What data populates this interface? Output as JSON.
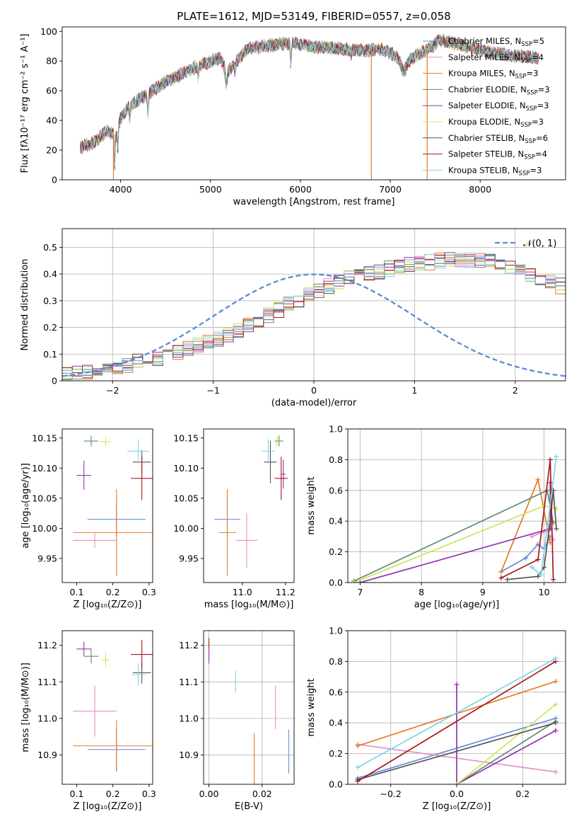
{
  "title": "PLATE=1612, MJD=53149, FIBERID=0557, z=0.058",
  "colors": {
    "c1": "#6a8fdc",
    "c2": "#e88fc4",
    "c3": "#e67a22",
    "c4": "#5e8f6a",
    "c5": "#9333b0",
    "c6": "#cde65a",
    "c7": "#555555",
    "c8": "#a61a1a",
    "c9": "#7fd6e6"
  },
  "legend_spectrum": [
    {
      "label": "Chabrier MILES, N",
      "sub": "SSP",
      "tail": "=5",
      "color": "c1"
    },
    {
      "label": "Salpeter MILES, N",
      "sub": "SSP",
      "tail": "=4",
      "color": "c2"
    },
    {
      "label": "Kroupa MILES, N",
      "sub": "SSP",
      "tail": "=3",
      "color": "c3"
    },
    {
      "label": "Chabrier ELODIE, N",
      "sub": "SSP",
      "tail": "=3",
      "color": "c4"
    },
    {
      "label": "Salpeter ELODIE, N",
      "sub": "SSP",
      "tail": "=3",
      "color": "c5"
    },
    {
      "label": "Kroupa ELODIE, N",
      "sub": "SSP",
      "tail": "=3",
      "color": "c6"
    },
    {
      "label": "Chabrier STELIB, N",
      "sub": "SSP",
      "tail": "=6",
      "color": "c7"
    },
    {
      "label": "Salpeter STELIB, N",
      "sub": "SSP",
      "tail": "=4",
      "color": "c8"
    },
    {
      "label": "Kroupa STELIB, N",
      "sub": "SSP",
      "tail": "=3",
      "color": "c9"
    }
  ],
  "legend_hist": "𝒩(0, 1)",
  "chart_data": [
    {
      "id": "spectrum",
      "type": "line",
      "xlabel": "wavelength [Angstrom, rest frame]",
      "ylabel": "Flux [fλ10⁻¹⁷ erg cm⁻² s⁻¹ A⁻¹]",
      "xlim": [
        3350,
        8950
      ],
      "ylim": [
        0,
        103
      ],
      "xticks": [
        4000,
        5000,
        6000,
        7000,
        8000
      ],
      "yticks": [
        0,
        20,
        40,
        60,
        80,
        100
      ],
      "continuum": {
        "x": [
          3550,
          3700,
          3850,
          3950,
          4000,
          4100,
          4300,
          4500,
          4800,
          5100,
          5200,
          5400,
          5700,
          5900,
          6100,
          6300,
          6500,
          6700,
          6900,
          7050,
          7150,
          7300,
          7450,
          7550,
          7700,
          7900,
          8100,
          8300,
          8500,
          8650
        ],
        "y": [
          22,
          25,
          33,
          29,
          42,
          50,
          58,
          66,
          75,
          82,
          73,
          88,
          91,
          92,
          90,
          89,
          88,
          87,
          88,
          84,
          78,
          84,
          89,
          94,
          92,
          89,
          86,
          84,
          83,
          82
        ]
      },
      "dips": [
        {
          "x": 3933,
          "depth": 22,
          "w": 6
        },
        {
          "x": 3968,
          "depth": 16,
          "w": 6
        },
        {
          "x": 4101,
          "depth": 8,
          "w": 8
        },
        {
          "x": 4304,
          "depth": 14,
          "w": 10
        },
        {
          "x": 4861,
          "depth": 7,
          "w": 8
        },
        {
          "x": 5175,
          "depth": 10,
          "w": 14
        },
        {
          "x": 5270,
          "depth": 5,
          "w": 8
        },
        {
          "x": 5893,
          "depth": 15,
          "w": 8
        },
        {
          "x": 6563,
          "depth": 4,
          "w": 8
        },
        {
          "x": 7150,
          "depth": 5,
          "w": 40
        }
      ],
      "spikes": [
        {
          "x": 3920,
          "color": "c3"
        },
        {
          "x": 6790,
          "color": "c3"
        },
        {
          "x": 7410,
          "color": "c3"
        }
      ]
    },
    {
      "id": "residuals",
      "type": "histogram",
      "xlabel": "(data-model)/error",
      "ylabel": "Normed distribution",
      "xlim": [
        -2.5,
        2.5
      ],
      "ylim": [
        0,
        0.57
      ],
      "xticks": [
        -2,
        -1,
        0,
        1,
        2
      ],
      "yticks": [
        0,
        0.1,
        0.2,
        0.3,
        0.4,
        0.5
      ],
      "bin_width": 0.1,
      "bin_start": -2.5,
      "base_values": [
        0.025,
        0.03,
        0.035,
        0.04,
        0.045,
        0.055,
        0.06,
        0.07,
        0.075,
        0.085,
        0.095,
        0.105,
        0.12,
        0.13,
        0.145,
        0.16,
        0.175,
        0.19,
        0.21,
        0.225,
        0.245,
        0.265,
        0.285,
        0.3,
        0.32,
        0.335,
        0.355,
        0.37,
        0.385,
        0.395,
        0.405,
        0.41,
        0.42,
        0.43,
        0.435,
        0.44,
        0.445,
        0.45,
        0.455,
        0.455,
        0.455,
        0.45,
        0.445,
        0.435,
        0.425,
        0.415,
        0.4,
        0.385,
        0.37,
        0.355,
        0.335,
        0.315,
        0.3,
        0.28,
        0.26,
        0.24,
        0.22,
        0.2,
        0.18,
        0.165,
        0.15,
        0.135,
        0.12,
        0.105,
        0.095,
        0.085,
        0.075,
        0.065,
        0.06,
        0.055,
        0.045,
        0.04,
        0.035,
        0.03,
        0.025,
        0.02,
        0.02,
        0.02,
        0.02,
        0.02
      ],
      "series_offsets": [
        {
          "color": "c1",
          "seed": 1
        },
        {
          "color": "c2",
          "seed": 2
        },
        {
          "color": "c3",
          "seed": 3
        },
        {
          "color": "c4",
          "seed": 4
        },
        {
          "color": "c5",
          "seed": 5
        },
        {
          "color": "c6",
          "seed": 6
        },
        {
          "color": "c7",
          "seed": 7
        },
        {
          "color": "c8",
          "seed": 8
        },
        {
          "color": "c9",
          "seed": 9
        }
      ],
      "normal_curve": {
        "mu": 0,
        "sigma": 1
      }
    },
    {
      "id": "age_vs_Z",
      "type": "errorbar",
      "xlabel": "Z [log₁₀(Z/Z⊙)]",
      "ylabel": "age  [log₁₀(age/yr)]",
      "xlim": [
        0.06,
        0.31
      ],
      "ylim": [
        9.91,
        10.165
      ],
      "xticks": [
        0.1,
        0.2,
        0.3
      ],
      "yticks": [
        9.95,
        10.0,
        10.05,
        10.1,
        10.15
      ],
      "points": [
        {
          "x": 0.21,
          "y": 10.015,
          "xerr": 0.08,
          "yerr": 0.028,
          "color": "c1"
        },
        {
          "x": 0.15,
          "y": 9.98,
          "xerr": 0.06,
          "yerr": 0.012,
          "color": "c2"
        },
        {
          "x": 0.21,
          "y": 9.993,
          "xerr": 0.12,
          "yerr": 0.072,
          "color": "c3"
        },
        {
          "x": 0.14,
          "y": 10.145,
          "xerr": 0.02,
          "yerr": 0.009,
          "color": "c4"
        },
        {
          "x": 0.12,
          "y": 10.088,
          "xerr": 0.02,
          "yerr": 0.024,
          "color": "c5"
        },
        {
          "x": 0.18,
          "y": 10.144,
          "xerr": 0.015,
          "yerr": 0.008,
          "color": "c6"
        },
        {
          "x": 0.28,
          "y": 10.11,
          "xerr": 0.025,
          "yerr": 0.02,
          "color": "c7"
        },
        {
          "x": 0.28,
          "y": 10.083,
          "xerr": 0.03,
          "yerr": 0.036,
          "color": "c8"
        },
        {
          "x": 0.27,
          "y": 10.128,
          "xerr": 0.03,
          "yerr": 0.02,
          "color": "c9"
        }
      ]
    },
    {
      "id": "age_vs_mass",
      "type": "errorbar",
      "xlabel": "mass [log₁₀(M/M⊙)]",
      "ylabel": "",
      "xlim": [
        10.82,
        11.24
      ],
      "ylim": [
        9.91,
        10.165
      ],
      "xticks": [
        11.0,
        11.2
      ],
      "yticks": [
        9.95,
        10.0,
        10.05,
        10.1,
        10.15
      ],
      "points": [
        {
          "x": 10.93,
          "y": 10.015,
          "xerr": 0.06,
          "yerr": 0.028,
          "color": "c1"
        },
        {
          "x": 11.02,
          "y": 9.98,
          "xerr": 0.05,
          "yerr": 0.045,
          "color": "c2"
        },
        {
          "x": 10.93,
          "y": 9.993,
          "xerr": 0.04,
          "yerr": 0.072,
          "color": "c3"
        },
        {
          "x": 11.17,
          "y": 10.145,
          "xerr": 0.02,
          "yerr": 0.009,
          "color": "c4"
        },
        {
          "x": 11.19,
          "y": 10.09,
          "xerr": 0.01,
          "yerr": 0.024,
          "color": "c5"
        },
        {
          "x": 11.16,
          "y": 10.144,
          "xerr": 0.01,
          "yerr": 0.008,
          "color": "c6"
        },
        {
          "x": 11.13,
          "y": 10.11,
          "xerr": 0.03,
          "yerr": 0.035,
          "color": "c7"
        },
        {
          "x": 11.18,
          "y": 10.083,
          "xerr": 0.03,
          "yerr": 0.036,
          "color": "c8"
        },
        {
          "x": 11.12,
          "y": 10.128,
          "xerr": 0.03,
          "yerr": 0.02,
          "color": "c9"
        }
      ]
    },
    {
      "id": "mass_weight_vs_age",
      "type": "line",
      "xlabel": "age  [log₁₀(age/yr)]",
      "ylabel": "mass weight",
      "xlim": [
        6.8,
        10.35
      ],
      "ylim": [
        0,
        1.0
      ],
      "xticks": [
        7,
        8,
        9,
        10
      ],
      "yticks": [
        0.0,
        0.2,
        0.4,
        0.6,
        0.8,
        1.0
      ],
      "series": [
        {
          "color": "c1",
          "x": [
            9.3,
            9.7,
            9.9,
            10.0,
            10.1
          ],
          "y": [
            0.07,
            0.16,
            0.25,
            0.22,
            0.3
          ]
        },
        {
          "color": "c2",
          "x": [
            9.8,
            10.0,
            10.1,
            10.15
          ],
          "y": [
            0.3,
            0.33,
            0.38,
            0.28
          ]
        },
        {
          "color": "c3",
          "x": [
            9.3,
            9.9,
            10.1
          ],
          "y": [
            0.07,
            0.67,
            0.26
          ]
        },
        {
          "color": "c4",
          "x": [
            6.9,
            10.05,
            10.15
          ],
          "y": [
            0.01,
            0.6,
            0.39
          ]
        },
        {
          "color": "c5",
          "x": [
            7.0,
            10.1,
            10.1
          ],
          "y": [
            0.0,
            0.35,
            0.65
          ]
        },
        {
          "color": "c6",
          "x": [
            6.9,
            10.0,
            10.2
          ],
          "y": [
            0.0,
            0.5,
            0.48
          ]
        },
        {
          "color": "c7",
          "x": [
            9.4,
            9.9,
            10.0,
            10.1,
            10.15,
            10.2
          ],
          "y": [
            0.02,
            0.04,
            0.1,
            0.4,
            0.6,
            0.35
          ]
        },
        {
          "color": "c8",
          "x": [
            9.3,
            9.9,
            10.1,
            10.15
          ],
          "y": [
            0.03,
            0.15,
            0.8,
            0.02
          ]
        },
        {
          "color": "c9",
          "x": [
            9.8,
            9.95,
            10.2
          ],
          "y": [
            0.1,
            0.05,
            0.82
          ]
        }
      ]
    },
    {
      "id": "mass_vs_Z",
      "type": "errorbar",
      "xlabel": "Z [log₁₀(Z/Z⊙)]",
      "ylabel": "mass [log₁₀(M/M⊙)]",
      "xlim": [
        0.06,
        0.31
      ],
      "ylim": [
        10.82,
        11.24
      ],
      "xticks": [
        0.1,
        0.2,
        0.3
      ],
      "yticks": [
        10.9,
        11.0,
        11.1,
        11.2
      ],
      "points": [
        {
          "x": 0.21,
          "y": 10.915,
          "xerr": 0.08,
          "yerr": 0.06,
          "color": "c1"
        },
        {
          "x": 0.15,
          "y": 11.02,
          "xerr": 0.06,
          "yerr": 0.07,
          "color": "c2"
        },
        {
          "x": 0.21,
          "y": 10.925,
          "xerr": 0.12,
          "yerr": 0.07,
          "color": "c3"
        },
        {
          "x": 0.14,
          "y": 11.17,
          "xerr": 0.02,
          "yerr": 0.02,
          "color": "c4"
        },
        {
          "x": 0.12,
          "y": 11.19,
          "xerr": 0.02,
          "yerr": 0.02,
          "color": "c5"
        },
        {
          "x": 0.18,
          "y": 11.16,
          "xerr": 0.01,
          "yerr": 0.02,
          "color": "c6"
        },
        {
          "x": 0.28,
          "y": 11.125,
          "xerr": 0.025,
          "yerr": 0.03,
          "color": "c7"
        },
        {
          "x": 0.28,
          "y": 11.175,
          "xerr": 0.03,
          "yerr": 0.04,
          "color": "c8"
        },
        {
          "x": 0.27,
          "y": 11.12,
          "xerr": 0.02,
          "yerr": 0.03,
          "color": "c9"
        }
      ]
    },
    {
      "id": "mass_vs_EBV",
      "type": "errorbar",
      "xlabel": "E(B-V)",
      "ylabel": "",
      "xlim": [
        -0.002,
        0.032
      ],
      "ylim": [
        10.82,
        11.24
      ],
      "xticks": [
        0.0,
        0.02
      ],
      "yticks": [
        10.9,
        11.0,
        11.1,
        11.2
      ],
      "points": [
        {
          "x": 0.0,
          "y": 11.19,
          "xerr": 0,
          "yerr": 0.03,
          "color": "c8"
        },
        {
          "x": 0.0,
          "y": 11.17,
          "xerr": 0,
          "yerr": 0.02,
          "color": "c5"
        },
        {
          "x": 0.01,
          "y": 11.1,
          "xerr": 0,
          "yerr": 0.03,
          "color": "c9"
        },
        {
          "x": 0.017,
          "y": 10.89,
          "xerr": 0,
          "yerr": 0.07,
          "color": "c3"
        },
        {
          "x": 0.025,
          "y": 11.03,
          "xerr": 0,
          "yerr": 0.06,
          "color": "c2"
        },
        {
          "x": 0.03,
          "y": 10.91,
          "xerr": 0,
          "yerr": 0.06,
          "color": "c1"
        }
      ]
    },
    {
      "id": "mass_weight_vs_Z",
      "type": "line",
      "xlabel": "Z [log₁₀(Z/Z⊙)]",
      "ylabel": "mass weight",
      "xlim": [
        -0.33,
        0.33
      ],
      "ylim": [
        0,
        1.0
      ],
      "xticks": [
        -0.2,
        0.0,
        0.2
      ],
      "yticks": [
        0.0,
        0.2,
        0.4,
        0.6,
        0.8,
        1.0
      ],
      "series": [
        {
          "color": "c1",
          "x": [
            -0.3,
            0.3
          ],
          "y": [
            0.04,
            0.43
          ]
        },
        {
          "color": "c2",
          "x": [
            -0.3,
            0.3
          ],
          "y": [
            0.26,
            0.08
          ]
        },
        {
          "color": "c3",
          "x": [
            -0.3,
            0.3
          ],
          "y": [
            0.25,
            0.67
          ]
        },
        {
          "color": "c4",
          "x": [
            0.0,
            0.3
          ],
          "y": [
            0.0,
            0.41
          ]
        },
        {
          "color": "c5",
          "x": [
            0.0,
            0.0,
            0.3
          ],
          "y": [
            0.65,
            0.0,
            0.35
          ]
        },
        {
          "color": "c6",
          "x": [
            0.0,
            0.3
          ],
          "y": [
            0.0,
            0.52
          ]
        },
        {
          "color": "c7",
          "x": [
            -0.3,
            0.3
          ],
          "y": [
            0.03,
            0.4
          ]
        },
        {
          "color": "c8",
          "x": [
            -0.3,
            0.3
          ],
          "y": [
            0.02,
            0.8
          ]
        },
        {
          "color": "c9",
          "x": [
            -0.3,
            0.3
          ],
          "y": [
            0.11,
            0.82
          ]
        }
      ]
    }
  ]
}
